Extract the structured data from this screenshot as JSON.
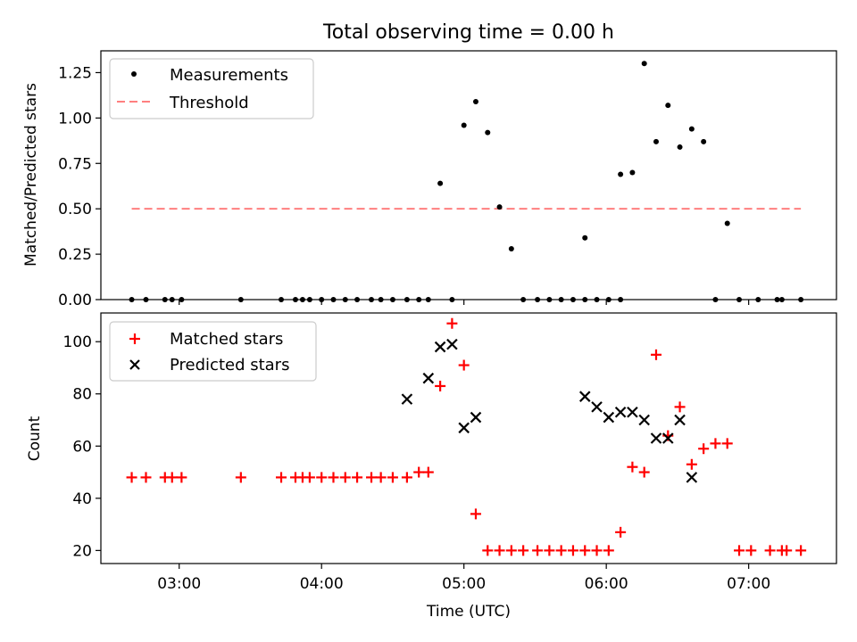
{
  "chart_data": [
    {
      "type": "scatter",
      "title": "Total observing time = 0.00 h",
      "xlabel": "",
      "ylabel": "Matched/Predicted stars",
      "xlim": [
        "02:27",
        "07:37"
      ],
      "ylim": [
        0,
        1.37
      ],
      "yticks": [
        "0.00",
        "0.25",
        "0.50",
        "0.75",
        "1.00",
        "1.25"
      ],
      "legend_position": "top-left",
      "legend": {
        "measurements": "Measurements",
        "threshold": "Threshold"
      },
      "colors": {
        "measurements": "#000000",
        "threshold": "#ff7f7f"
      },
      "threshold": {
        "value": 0.5,
        "x_start": "02:40",
        "x_end": "07:22"
      },
      "series": [
        {
          "name": "Measurements",
          "points": [
            [
              "02:40",
              0
            ],
            [
              "02:46",
              0
            ],
            [
              "02:54",
              0
            ],
            [
              "02:57",
              0
            ],
            [
              "03:01",
              0
            ],
            [
              "03:26",
              0
            ],
            [
              "03:43",
              0
            ],
            [
              "03:49",
              0
            ],
            [
              "03:52",
              0
            ],
            [
              "03:55",
              0
            ],
            [
              "04:00",
              0
            ],
            [
              "04:05",
              0
            ],
            [
              "04:10",
              0
            ],
            [
              "04:15",
              0
            ],
            [
              "04:21",
              0
            ],
            [
              "04:25",
              0
            ],
            [
              "04:30",
              0
            ],
            [
              "04:41",
              0
            ],
            [
              "04:45",
              0
            ],
            [
              "04:36",
              0
            ],
            [
              "04:50",
              0.64
            ],
            [
              "04:55",
              0
            ],
            [
              "05:00",
              0.96
            ],
            [
              "05:05",
              1.09
            ],
            [
              "05:10",
              0.92
            ],
            [
              "05:15",
              0.51
            ],
            [
              "05:20",
              0.28
            ],
            [
              "05:25",
              0
            ],
            [
              "05:31",
              0
            ],
            [
              "05:36",
              0
            ],
            [
              "05:41",
              0
            ],
            [
              "05:46",
              0
            ],
            [
              "05:51",
              0
            ],
            [
              "05:56",
              0
            ],
            [
              "06:01",
              0
            ],
            [
              "06:06",
              0
            ],
            [
              "05:51",
              0.34
            ],
            [
              "06:06",
              0.69
            ],
            [
              "06:11",
              0.7
            ],
            [
              "06:16",
              1.3
            ],
            [
              "06:21",
              0.87
            ],
            [
              "06:26",
              1.07
            ],
            [
              "06:31",
              0.84
            ],
            [
              "06:36",
              0.94
            ],
            [
              "06:41",
              0.87
            ],
            [
              "06:46",
              0
            ],
            [
              "06:51",
              0.42
            ],
            [
              "06:56",
              0
            ],
            [
              "07:04",
              0
            ],
            [
              "07:12",
              0
            ],
            [
              "07:14",
              0
            ],
            [
              "07:22",
              0
            ]
          ]
        }
      ]
    },
    {
      "type": "scatter",
      "title": "",
      "xlabel": "Time (UTC)",
      "ylabel": "Count",
      "xlim": [
        "02:27",
        "07:37"
      ],
      "ylim": [
        15,
        111
      ],
      "yticks": [
        "20",
        "40",
        "60",
        "80",
        "100"
      ],
      "xticks": [
        "03:00",
        "04:00",
        "05:00",
        "06:00",
        "07:00"
      ],
      "legend_position": "top-left",
      "legend": {
        "matched": "Matched stars",
        "predicted": "Predicted stars"
      },
      "colors": {
        "matched": "#ff0000",
        "predicted": "#000000"
      },
      "series": [
        {
          "name": "Matched stars",
          "points": [
            [
              "02:40",
              48
            ],
            [
              "02:46",
              48
            ],
            [
              "02:54",
              48
            ],
            [
              "02:57",
              48
            ],
            [
              "03:01",
              48
            ],
            [
              "03:26",
              48
            ],
            [
              "03:43",
              48
            ],
            [
              "03:49",
              48
            ],
            [
              "03:52",
              48
            ],
            [
              "03:55",
              48
            ],
            [
              "04:00",
              48
            ],
            [
              "04:05",
              48
            ],
            [
              "04:10",
              48
            ],
            [
              "04:15",
              48
            ],
            [
              "04:21",
              48
            ],
            [
              "04:25",
              48
            ],
            [
              "04:30",
              48
            ],
            [
              "04:36",
              48
            ],
            [
              "04:41",
              50
            ],
            [
              "04:45",
              50
            ],
            [
              "04:50",
              83
            ],
            [
              "04:55",
              107
            ],
            [
              "05:00",
              91
            ],
            [
              "05:05",
              34
            ],
            [
              "05:10",
              20
            ],
            [
              "05:15",
              20
            ],
            [
              "05:20",
              20
            ],
            [
              "05:25",
              20
            ],
            [
              "05:31",
              20
            ],
            [
              "05:36",
              20
            ],
            [
              "05:41",
              20
            ],
            [
              "05:46",
              20
            ],
            [
              "05:51",
              20
            ],
            [
              "05:56",
              20
            ],
            [
              "06:01",
              20
            ],
            [
              "06:06",
              27
            ],
            [
              "06:11",
              52
            ],
            [
              "06:16",
              50
            ],
            [
              "06:21",
              95
            ],
            [
              "06:26",
              64
            ],
            [
              "06:31",
              75
            ],
            [
              "06:36",
              53
            ],
            [
              "06:41",
              59
            ],
            [
              "06:46",
              61
            ],
            [
              "06:51",
              61
            ],
            [
              "06:56",
              20
            ],
            [
              "07:01",
              20
            ],
            [
              "07:09",
              20
            ],
            [
              "07:14",
              20
            ],
            [
              "07:16",
              20
            ],
            [
              "07:22",
              20
            ]
          ]
        },
        {
          "name": "Predicted stars",
          "points": [
            [
              "04:36",
              78
            ],
            [
              "04:45",
              86
            ],
            [
              "04:50",
              98
            ],
            [
              "04:55",
              99
            ],
            [
              "05:00",
              67
            ],
            [
              "05:05",
              71
            ],
            [
              "05:51",
              79
            ],
            [
              "05:56",
              75
            ],
            [
              "06:01",
              71
            ],
            [
              "06:06",
              73
            ],
            [
              "06:11",
              73
            ],
            [
              "06:16",
              70
            ],
            [
              "06:21",
              63
            ],
            [
              "06:26",
              63
            ],
            [
              "06:31",
              70
            ],
            [
              "06:36",
              48
            ]
          ]
        }
      ]
    }
  ]
}
